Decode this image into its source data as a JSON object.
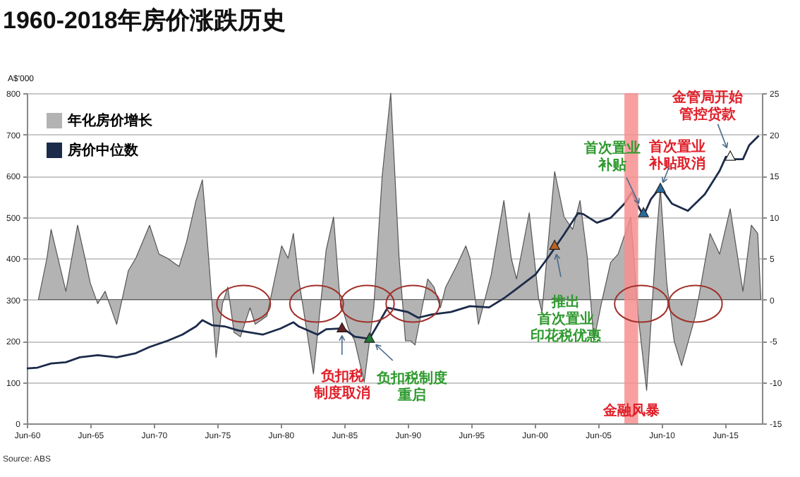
{
  "chart_data": {
    "type": "area",
    "title": "1960-2018年房价涨跌历史",
    "ylabel": "A$'000",
    "xlim": [
      "1960-06",
      "2018-05"
    ],
    "xticks": [
      {
        "value": "1960-06",
        "label": "Jun-60"
      },
      {
        "value": "1965-06",
        "label": "Jun-65"
      },
      {
        "value": "1970-06",
        "label": "Jun-70"
      },
      {
        "value": "1975-06",
        "label": "Jun-75"
      },
      {
        "value": "1980-06",
        "label": "Jun-80"
      },
      {
        "value": "1985-06",
        "label": "Jun-85"
      },
      {
        "value": "1990-06",
        "label": "Jun-90"
      },
      {
        "value": "1995-06",
        "label": "Jun-95"
      },
      {
        "value": "2000-06",
        "label": "Jun-00"
      },
      {
        "value": "2005-06",
        "label": "Jun-05"
      },
      {
        "value": "2010-06",
        "label": "Jun-10"
      },
      {
        "value": "2015-06",
        "label": "Jun-15"
      }
    ],
    "ylim": [
      0,
      800
    ],
    "yticks": [
      0,
      100,
      200,
      300,
      400,
      500,
      600,
      700,
      800
    ],
    "y2lim": [
      -15,
      25
    ],
    "y2ticks": [
      -15,
      -10,
      -5,
      0,
      5,
      10,
      15,
      20,
      25
    ],
    "grid": "y",
    "legend": "top left",
    "series": [
      {
        "name": "年化房价增长",
        "axis": "y2",
        "color": "#b3b3b3",
        "x": [
          "1961-05",
          "1962-01",
          "1962-05",
          "1963-07",
          "1964-06",
          "1965-01",
          "1965-06",
          "1966-01",
          "1966-08",
          "1967-07",
          "1968-06",
          "1969-01",
          "1970-02",
          "1970-11",
          "1971-07",
          "1972-06",
          "1973-01",
          "1973-10",
          "1974-04",
          "1974-07",
          "1975-05",
          "1975-11",
          "1976-04",
          "1976-10",
          "1977-04",
          "1978-01",
          "1978-06",
          "1979-05",
          "1980-07",
          "1981-01",
          "1981-06",
          "1981-11",
          "1983-01",
          "1984-01",
          "1984-08",
          "1985-02",
          "1985-10",
          "1986-04",
          "1987-01",
          "1987-10",
          "1988-06",
          "1989-02",
          "1989-10",
          "1990-04",
          "1990-09",
          "1991-01",
          "1992-01",
          "1992-07",
          "1993-01",
          "1993-06",
          "1994-04",
          "1995-01",
          "1995-05",
          "1996-01",
          "1997-01",
          "1998-01",
          "1998-08",
          "1999-01",
          "2000-01",
          "2000-10",
          "2001-01",
          "2002-01",
          "2002-10",
          "2003-06",
          "2004-01",
          "2004-08",
          "2005-02",
          "2005-10",
          "2006-06",
          "2007-01",
          "2008-01",
          "2008-08",
          "2009-04",
          "2010-01",
          "2010-05",
          "2010-11",
          "2011-06",
          "2012-01",
          "2013-02",
          "2014-04",
          "2015-01",
          "2015-11",
          "2016-11",
          "2017-07",
          "2018-01",
          "2018-04"
        ],
        "values": [
          0,
          5,
          8.5,
          1,
          9,
          5,
          2,
          -0.5,
          1,
          -3,
          3.5,
          5,
          9,
          5.5,
          5,
          4,
          7,
          12,
          14.5,
          10,
          -7,
          -0.5,
          1.5,
          -4,
          -4.5,
          -1,
          -3,
          -2,
          6.5,
          5,
          8,
          2.5,
          -9,
          6,
          10,
          0,
          -3.5,
          -5,
          -10,
          -1,
          15,
          25,
          5,
          -5,
          -5,
          -5.5,
          2.5,
          1.5,
          -1,
          1.5,
          4,
          6.5,
          5,
          -3,
          3,
          12,
          5,
          2.5,
          10.5,
          0,
          -1.5,
          15.5,
          10,
          8.5,
          12,
          5,
          -5,
          0,
          4.5,
          5.5,
          10,
          -2,
          -11,
          7,
          13.5,
          2,
          -5,
          -8,
          -2,
          8,
          5.5,
          11,
          1,
          9,
          8,
          0
        ]
      },
      {
        "name": "房价中位数",
        "type": "line",
        "color": "#1c2b4a",
        "x": [
          "1960-06",
          "1961-04",
          "1962-05",
          "1963-07",
          "1964-08",
          "1966-01",
          "1967-07",
          "1969-01",
          "1970-02",
          "1971-07",
          "1972-09",
          "1973-10",
          "1974-04",
          "1975-01",
          "1976-01",
          "1977-02",
          "1979-01",
          "1980-06",
          "1981-06",
          "1981-11",
          "1983-05",
          "1984-01",
          "1985-05",
          "1986-04",
          "1987-06",
          "1988-02",
          "1988-11",
          "1990-06",
          "1991-04",
          "1992-05",
          "1993-11",
          "1995-05",
          "1996-11",
          "1998-01",
          "1999-01",
          "2000-07",
          "2001-08",
          "2002-10",
          "2003-11",
          "2004-04",
          "2005-05",
          "2006-06",
          "2007-07",
          "2008-02",
          "2008-08",
          "2009-01",
          "2009-08",
          "2010-05",
          "2011-04",
          "2012-07",
          "2013-11",
          "2015-01",
          "2015-07",
          "2016-01",
          "2016-11",
          "2017-05",
          "2018-02"
        ],
        "values": [
          133,
          135,
          145,
          148,
          160,
          165,
          160,
          170,
          185,
          200,
          215,
          235,
          250,
          238,
          235,
          225,
          215,
          230,
          245,
          235,
          215,
          228,
          230,
          210,
          205,
          240,
          280,
          270,
          256,
          264,
          270,
          284,
          281,
          303,
          326,
          361,
          406,
          458,
          509,
          507,
          486,
          498,
          532,
          560,
          526,
          503,
          543,
          572,
          532,
          515,
          555,
          612,
          646,
          640,
          640,
          674,
          697
        ]
      }
    ],
    "bands": [
      {
        "axis": "x",
        "from": "2007-07",
        "to": "2008-08",
        "label": "金融风暴",
        "color": "#f78f8f"
      }
    ],
    "annotations": [
      {
        "text": "负扣税制度取消",
        "x": "1985-04",
        "y": 230
      },
      {
        "text": "负扣税制度重启",
        "x": "1987-06",
        "y": 205
      },
      {
        "text": "推出首次置业印花税优惠",
        "x": "2002-01",
        "y": 430
      },
      {
        "text": "首次置业补贴",
        "x": "2009-01",
        "y": 509
      },
      {
        "text": "首次置业补贴取消",
        "x": "2010-05",
        "y": 568
      },
      {
        "text": "金管局开始管控贷款",
        "x": "2015-11",
        "y": 646
      },
      "Source: ABS"
    ]
  }
}
